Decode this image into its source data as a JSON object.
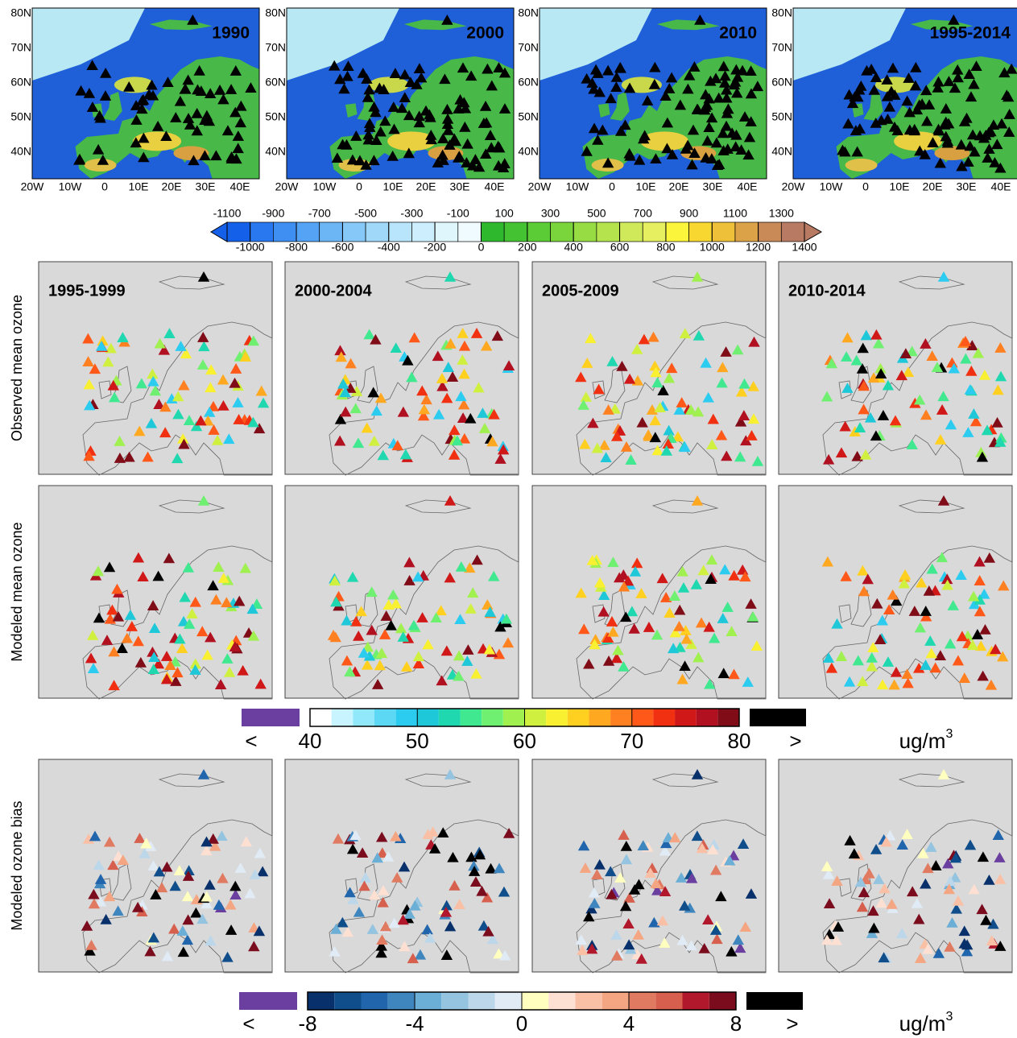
{
  "top_panels": {
    "titles": [
      "1990",
      "2000",
      "2010",
      "1995-2014"
    ],
    "lat_labels": [
      "80N",
      "70N",
      "60N",
      "50N",
      "40N"
    ],
    "lon_labels": [
      "20W",
      "10W",
      "0",
      "10E",
      "20E",
      "30E",
      "40E"
    ]
  },
  "elevation_colorbar": {
    "lim": [
      -1100,
      1400
    ],
    "ticks_top": [
      -1100,
      -900,
      -700,
      -500,
      -300,
      -100,
      100,
      300,
      500,
      700,
      900,
      1100,
      1300
    ],
    "ticks_bottom": [
      -1000,
      -800,
      -600,
      -400,
      -200,
      0,
      200,
      400,
      600,
      800,
      1000,
      1200,
      1400
    ],
    "colors": [
      "#1560e8",
      "#2a78f0",
      "#3f8ff2",
      "#55a3f4",
      "#6db6f6",
      "#86c8f7",
      "#a0d8f9",
      "#b8e5fb",
      "#cdeefc",
      "#e0f6fd",
      "#f0fbff",
      "#2eb82e",
      "#45c232",
      "#5ccc36",
      "#7ad43c",
      "#98dc44",
      "#b4e34e",
      "#cfe95a",
      "#e6ef60",
      "#fbf53c",
      "#f7d730",
      "#eebf38",
      "#dca248",
      "#c98a58",
      "#b87a62"
    ]
  },
  "row_labels": [
    "Observed mean ozone",
    "Modeled mean ozone",
    "Modeled ozone bias"
  ],
  "period_labels": [
    "1995-1999",
    "2000-2004",
    "2005-2009",
    "2010-2014"
  ],
  "ozone_colorbar": {
    "lim": [
      40,
      80
    ],
    "ticks": [
      40,
      50,
      60,
      70,
      80
    ],
    "under_label": "<",
    "over_label": ">",
    "under_color": "#6b3fa0",
    "over_color": "#000000",
    "unit": "ug/m",
    "unit_sup": "3",
    "colors": [
      "#ffffff",
      "#c8f4ff",
      "#90e8fa",
      "#5cd8f5",
      "#2ccbf0",
      "#1ec8d8",
      "#20d8b0",
      "#40e890",
      "#70f070",
      "#a0f050",
      "#d0f040",
      "#f8f030",
      "#ffd020",
      "#ffa820",
      "#ff8020",
      "#ff5818",
      "#f03010",
      "#d01818",
      "#b01020",
      "#800c18"
    ]
  },
  "bias_colorbar": {
    "lim": [
      -8,
      8
    ],
    "ticks": [
      -8,
      -4,
      0,
      4,
      8
    ],
    "under_label": "<",
    "over_label": ">",
    "under_color": "#6b3fa0",
    "over_color": "#000000",
    "unit": "ug/m",
    "unit_sup": "3",
    "colors": [
      "#08306b",
      "#104e8b",
      "#2166ac",
      "#3f86bf",
      "#6baed6",
      "#94c4df",
      "#bcd7ea",
      "#e0ebf5",
      "#ffffbf",
      "#fde0d2",
      "#f9c0a6",
      "#f4a582",
      "#e07b62",
      "#d6604d",
      "#b2182b",
      "#7a0c1e"
    ]
  }
}
